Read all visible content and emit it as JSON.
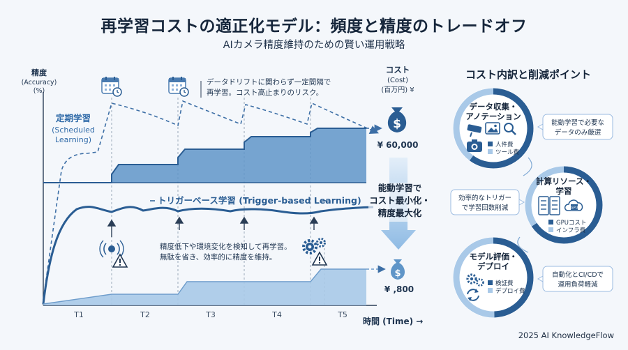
{
  "header": {
    "title": "再学習コストの適正化モデル：頻度と精度のトレードオフ",
    "subtitle": "AIカメラ精度維持のための賢い運用戦略"
  },
  "axes": {
    "y_label_1": "精度",
    "y_label_2": "(Accuracy)",
    "y_label_3": "(%)",
    "x_label": "時間 (Time) →",
    "ticks": [
      "T1",
      "T2",
      "T3",
      "T4",
      "T5"
    ],
    "cost_label_1": "コスト",
    "cost_label_2": "(Cost)",
    "cost_label_3": "(百万円) ¥"
  },
  "scheduled": {
    "label_1": "定期学習",
    "label_2": "(Scheduled",
    "label_3": "Learning)",
    "note_1": "データドリフトに関わらず一定間隔で",
    "note_2": "再学習。コスト高止まりのリスク。",
    "cost": "¥ 60,000"
  },
  "trigger": {
    "label": "トリガーベース学習 (Trigger-based Learning)",
    "note_1": "精度低下や環境変化を検知して再学習。",
    "note_2": "無駄を省き、効率的に精度を維持。",
    "cost": "¥ ,800"
  },
  "center_message": {
    "line_1": "能動学習で",
    "line_2": "コスト最小化・",
    "line_3": "精度最大化"
  },
  "breakdown": {
    "title": "コスト内訳と削減ポイント",
    "data": {
      "title_1": "データ収集・",
      "title_2": "アノテーション",
      "legend_1": "人件費",
      "legend_2": "ツール費",
      "tip_1": "能動学習で必要な",
      "tip_2": "データのみ厳選"
    },
    "compute": {
      "title_1": "計算リソース・",
      "title_2": "学習",
      "legend_1": "GPUコスト",
      "legend_2": "インフラ費",
      "gpu_text": "GPU",
      "tip_1": "効率的なトリガー",
      "tip_2": "で学習回数削減"
    },
    "deploy": {
      "title_1": "モデル評価・",
      "title_2": "デプロイ",
      "legend_1": "検証費",
      "legend_2": "デプロイ費",
      "tip_1": "自動化とCI/CDで",
      "tip_2": "運用負荷軽減"
    }
  },
  "footer": {
    "credit": "2025 AI KnowledgeFlow"
  },
  "colors": {
    "dark": "#2a5d93",
    "mid": "#5f95c8",
    "light": "#a9c9e8",
    "bg": "#f4f7fb"
  }
}
